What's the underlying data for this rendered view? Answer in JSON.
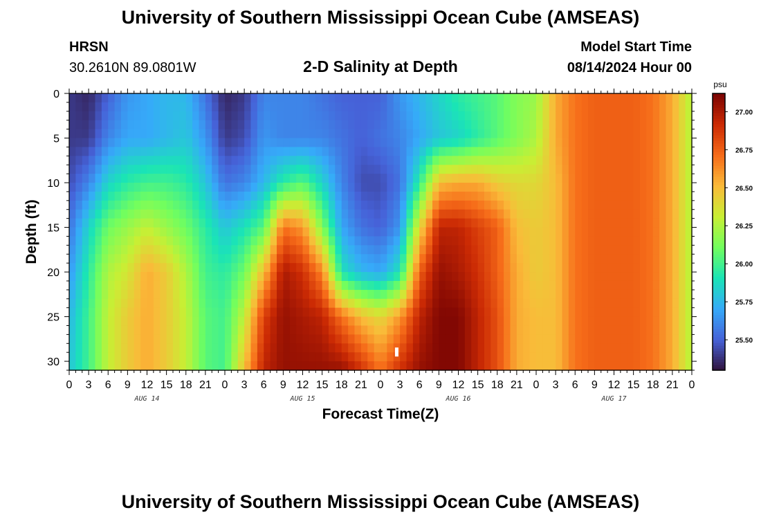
{
  "page": {
    "title_top": "University of Southern Mississippi Ocean Cube (AMSEAS)",
    "title_bottom": "University of Southern Mississippi Ocean Cube (AMSEAS)",
    "station": "HRSN",
    "coords": "30.2610N  89.0801W",
    "plot_title": "2-D Salinity at Depth",
    "model_label": "Model Start Time",
    "model_time": "08/14/2024 Hour 00"
  },
  "chart_data": {
    "type": "heatmap",
    "title": "2-D Salinity at Depth",
    "xlabel": "Forecast Time(Z)",
    "ylabel": "Depth (ft)",
    "xlim": [
      0,
      96
    ],
    "ylim": [
      0,
      31
    ],
    "x_tick_labels": [
      "0",
      "3",
      "6",
      "9",
      "12",
      "15",
      "18",
      "21",
      "0",
      "3",
      "6",
      "9",
      "12",
      "15",
      "18",
      "21",
      "0",
      "3",
      "6",
      "9",
      "12",
      "15",
      "18",
      "21",
      "0",
      "3",
      "6",
      "9",
      "12",
      "15",
      "18",
      "21",
      "0"
    ],
    "y_ticks": [
      0,
      5,
      10,
      15,
      20,
      25,
      30
    ],
    "y_tick_labels": [
      "0",
      "5",
      "10",
      "15",
      "20",
      "25",
      "30"
    ],
    "day_labels": [
      "AUG 14",
      "AUG 15",
      "AUG 16",
      "AUG 17"
    ],
    "colorbar": {
      "unit": "psu",
      "min": 25.3,
      "max": 27.12,
      "tick_values": [
        25.5,
        25.75,
        26.0,
        26.25,
        26.5,
        26.75,
        27.0
      ],
      "tick_labels": [
        "25.50",
        "25.75",
        "26.00",
        "26.25",
        "26.50",
        "26.75",
        "27.00"
      ]
    },
    "salinity_profiles": {
      "depths_ft": [
        0,
        5,
        10,
        15,
        20,
        25,
        31
      ],
      "profiles": [
        {
          "hour": 0,
          "values": [
            25.4,
            25.4,
            25.45,
            25.55,
            25.65,
            25.75,
            25.8
          ]
        },
        {
          "hour": 3,
          "values": [
            25.35,
            25.4,
            25.6,
            25.85,
            25.95,
            26.0,
            26.0
          ]
        },
        {
          "hour": 6,
          "values": [
            25.5,
            25.6,
            25.85,
            26.1,
            26.25,
            26.3,
            26.3
          ]
        },
        {
          "hour": 9,
          "values": [
            25.65,
            25.7,
            25.95,
            26.2,
            26.35,
            26.45,
            26.45
          ]
        },
        {
          "hour": 12,
          "values": [
            25.7,
            25.7,
            26.0,
            26.3,
            26.55,
            26.55,
            26.55
          ]
        },
        {
          "hour": 15,
          "values": [
            25.75,
            25.75,
            26.0,
            26.2,
            26.45,
            26.45,
            26.45
          ]
        },
        {
          "hour": 18,
          "values": [
            25.75,
            25.8,
            25.95,
            26.1,
            26.25,
            26.3,
            26.3
          ]
        },
        {
          "hour": 21,
          "values": [
            25.55,
            25.65,
            25.8,
            25.95,
            26.0,
            26.05,
            26.05
          ]
        },
        {
          "hour": 24,
          "values": [
            25.35,
            25.4,
            25.55,
            25.8,
            25.95,
            26.0,
            26.0
          ]
        },
        {
          "hour": 27,
          "values": [
            25.4,
            25.45,
            25.6,
            25.9,
            26.1,
            26.3,
            26.5
          ]
        },
        {
          "hour": 30,
          "values": [
            25.6,
            25.65,
            25.75,
            26.05,
            26.5,
            26.85,
            26.95
          ]
        },
        {
          "hour": 33,
          "values": [
            25.6,
            25.6,
            25.95,
            26.7,
            27.0,
            27.05,
            27.05
          ]
        },
        {
          "hour": 36,
          "values": [
            25.6,
            25.6,
            26.05,
            26.6,
            26.9,
            27.0,
            27.05
          ]
        },
        {
          "hour": 39,
          "values": [
            25.55,
            25.6,
            25.85,
            26.15,
            26.65,
            26.95,
            27.05
          ]
        },
        {
          "hour": 42,
          "values": [
            25.5,
            25.55,
            25.6,
            25.7,
            25.9,
            26.7,
            27.05
          ]
        },
        {
          "hour": 45,
          "values": [
            25.5,
            25.5,
            25.45,
            25.55,
            25.75,
            26.5,
            26.9
          ]
        },
        {
          "hour": 48,
          "values": [
            25.5,
            25.55,
            25.45,
            25.5,
            25.7,
            26.4,
            26.7
          ]
        },
        {
          "hour": 51,
          "values": [
            25.65,
            25.6,
            25.55,
            25.65,
            25.9,
            26.6,
            26.9
          ]
        },
        {
          "hour": 54,
          "values": [
            25.75,
            25.7,
            25.95,
            26.4,
            26.75,
            26.95,
            27.05
          ]
        },
        {
          "hour": 57,
          "values": [
            25.85,
            25.8,
            26.5,
            26.95,
            27.05,
            27.1,
            27.1
          ]
        },
        {
          "hour": 60,
          "values": [
            25.95,
            25.85,
            26.55,
            26.95,
            27.0,
            27.1,
            27.1
          ]
        },
        {
          "hour": 63,
          "values": [
            26.0,
            25.95,
            26.55,
            26.85,
            26.9,
            26.95,
            26.95
          ]
        },
        {
          "hour": 66,
          "values": [
            26.05,
            26.05,
            26.45,
            26.75,
            26.75,
            26.8,
            26.8
          ]
        },
        {
          "hour": 69,
          "values": [
            26.15,
            26.15,
            26.4,
            26.5,
            26.55,
            26.55,
            26.55
          ]
        },
        {
          "hour": 72,
          "values": [
            26.2,
            26.25,
            26.4,
            26.45,
            26.45,
            26.5,
            26.5
          ]
        },
        {
          "hour": 75,
          "values": [
            26.55,
            26.55,
            26.5,
            26.5,
            26.5,
            26.5,
            26.5
          ]
        },
        {
          "hour": 78,
          "values": [
            26.7,
            26.7,
            26.7,
            26.7,
            26.7,
            26.7,
            26.7
          ]
        },
        {
          "hour": 81,
          "values": [
            26.75,
            26.75,
            26.75,
            26.75,
            26.75,
            26.75,
            26.75
          ]
        },
        {
          "hour": 84,
          "values": [
            26.75,
            26.75,
            26.75,
            26.75,
            26.75,
            26.75,
            26.75
          ]
        },
        {
          "hour": 87,
          "values": [
            26.75,
            26.75,
            26.75,
            26.75,
            26.75,
            26.75,
            26.75
          ]
        },
        {
          "hour": 90,
          "values": [
            26.7,
            26.7,
            26.7,
            26.7,
            26.7,
            26.7,
            26.7
          ]
        },
        {
          "hour": 93,
          "values": [
            26.55,
            26.55,
            26.55,
            26.55,
            26.55,
            26.55,
            26.55
          ]
        },
        {
          "hour": 96,
          "values": [
            26.25,
            26.25,
            26.25,
            26.25,
            26.25,
            26.25,
            26.25
          ]
        }
      ]
    },
    "colors": {
      "scale": [
        "#30123b",
        "#4662d8",
        "#36aaf9",
        "#1ae4b6",
        "#72fe5e",
        "#c8ef34",
        "#faba39",
        "#f66b19",
        "#cb2a04",
        "#7a0403"
      ],
      "marker": "#ffffff"
    },
    "marker": {
      "hour": 50.5,
      "depth_ft": 29
    }
  }
}
